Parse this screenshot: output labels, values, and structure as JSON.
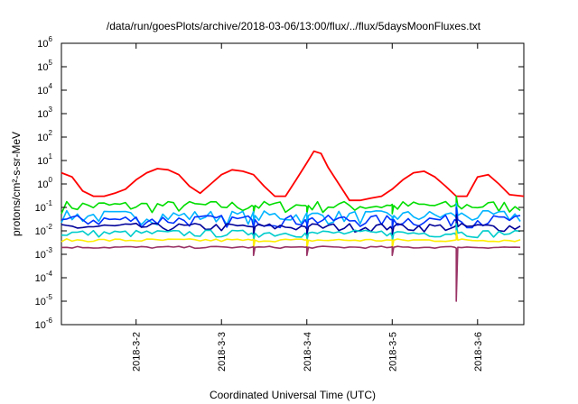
{
  "chart_data": {
    "type": "line",
    "title": "/data/run/goesPlots/archive/2018-03-06/13:00/flux/../flux/5daysMoonFluxes.txt",
    "xlabel": "Coordinated Universal Time (UTC)",
    "ylabel": "protons/cm²-s-sr-MeV",
    "yscale": "log",
    "ylim": [
      1e-06,
      1000000.0
    ],
    "xlim": [
      "2018-03-01T03:00",
      "2018-03-06T13:00"
    ],
    "grid": false,
    "legend": "none",
    "x_ticks": [
      "2018-3-2",
      "2018-3-3",
      "2018-3-4",
      "2018-3-5",
      "2018-3-6"
    ],
    "y_ticks": [
      {
        "base": "10",
        "exp": "-6"
      },
      {
        "base": "10",
        "exp": "-5"
      },
      {
        "base": "10",
        "exp": "-4"
      },
      {
        "base": "10",
        "exp": "-3"
      },
      {
        "base": "10",
        "exp": "-2"
      },
      {
        "base": "10",
        "exp": "-1"
      },
      {
        "base": "10",
        "exp": "0"
      },
      {
        "base": "10",
        "exp": "1"
      },
      {
        "base": "10",
        "exp": "2"
      },
      {
        "base": "10",
        "exp": "3"
      },
      {
        "base": "10",
        "exp": "4"
      },
      {
        "base": "10",
        "exp": "5"
      },
      {
        "base": "10",
        "exp": "6"
      }
    ],
    "series": [
      {
        "color": "#ff0000",
        "points": [
          [
            "2018-03-01T03:00",
            3.0
          ],
          [
            "2018-03-01T06:00",
            2.0
          ],
          [
            "2018-03-01T09:00",
            0.5
          ],
          [
            "2018-03-01T12:00",
            0.3
          ],
          [
            "2018-03-01T15:00",
            0.3
          ],
          [
            "2018-03-01T18:00",
            0.4
          ],
          [
            "2018-03-01T21:00",
            0.6
          ],
          [
            "2018-03-02T00:00",
            1.5
          ],
          [
            "2018-03-02T03:00",
            3.0
          ],
          [
            "2018-03-02T06:00",
            4.5
          ],
          [
            "2018-03-02T09:00",
            4.0
          ],
          [
            "2018-03-02T12:00",
            2.5
          ],
          [
            "2018-03-02T15:00",
            0.8
          ],
          [
            "2018-03-02T18:00",
            0.4
          ],
          [
            "2018-03-02T21:00",
            1.0
          ],
          [
            "2018-03-03T00:00",
            2.5
          ],
          [
            "2018-03-03T03:00",
            4.0
          ],
          [
            "2018-03-03T06:00",
            3.5
          ],
          [
            "2018-03-03T09:00",
            2.5
          ],
          [
            "2018-03-03T12:00",
            0.8
          ],
          [
            "2018-03-03T15:00",
            0.3
          ],
          [
            "2018-03-03T18:00",
            0.3
          ],
          [
            "2018-03-03T21:00",
            1.5
          ],
          [
            "2018-03-04T00:00",
            8.0
          ],
          [
            "2018-03-04T02:00",
            25.0
          ],
          [
            "2018-03-04T04:00",
            20.0
          ],
          [
            "2018-03-04T06:00",
            5.0
          ],
          [
            "2018-03-04T09:00",
            1.0
          ],
          [
            "2018-03-04T12:00",
            0.2
          ],
          [
            "2018-03-04T15:00",
            0.2
          ],
          [
            "2018-03-04T18:00",
            0.25
          ],
          [
            "2018-03-04T21:00",
            0.3
          ],
          [
            "2018-03-05T00:00",
            0.6
          ],
          [
            "2018-03-05T03:00",
            1.5
          ],
          [
            "2018-03-05T06:00",
            3.0
          ],
          [
            "2018-03-05T09:00",
            3.5
          ],
          [
            "2018-03-05T12:00",
            2.0
          ],
          [
            "2018-03-05T15:00",
            0.8
          ],
          [
            "2018-03-05T18:00",
            0.3
          ],
          [
            "2018-03-05T21:00",
            0.3
          ],
          [
            "2018-03-06T00:00",
            2.0
          ],
          [
            "2018-03-06T03:00",
            2.5
          ],
          [
            "2018-03-06T06:00",
            1.0
          ],
          [
            "2018-03-06T09:00",
            0.35
          ],
          [
            "2018-03-06T13:00",
            0.3
          ]
        ]
      },
      {
        "color": "#00dd00",
        "base": 0.12,
        "jitter": 0.55,
        "dip": 0.3
      },
      {
        "color": "#00b4ff",
        "base": 0.045,
        "jitter": 0.6,
        "dip": 0.15
      },
      {
        "color": "#0033ff",
        "base": 0.03,
        "jitter": 0.55,
        "dip": 0.1
      },
      {
        "color": "#000099",
        "base": 0.015,
        "jitter": 0.4,
        "dip": 0.05
      },
      {
        "color": "#00cccc",
        "base": 0.008,
        "jitter": 0.35,
        "dip": 0.02
      },
      {
        "color": "#ffee00",
        "base": 0.004,
        "jitter": 0.15,
        "dip": 0.01
      },
      {
        "color": "#993366",
        "base": 0.002,
        "jitter": 0.1,
        "dip": 1e-05
      }
    ],
    "dips": [
      "2018-03-03T09:00",
      "2018-03-04T00:00",
      "2018-03-05T00:00",
      "2018-03-05T18:00"
    ],
    "deep_dip": "2018-03-05T18:00"
  }
}
